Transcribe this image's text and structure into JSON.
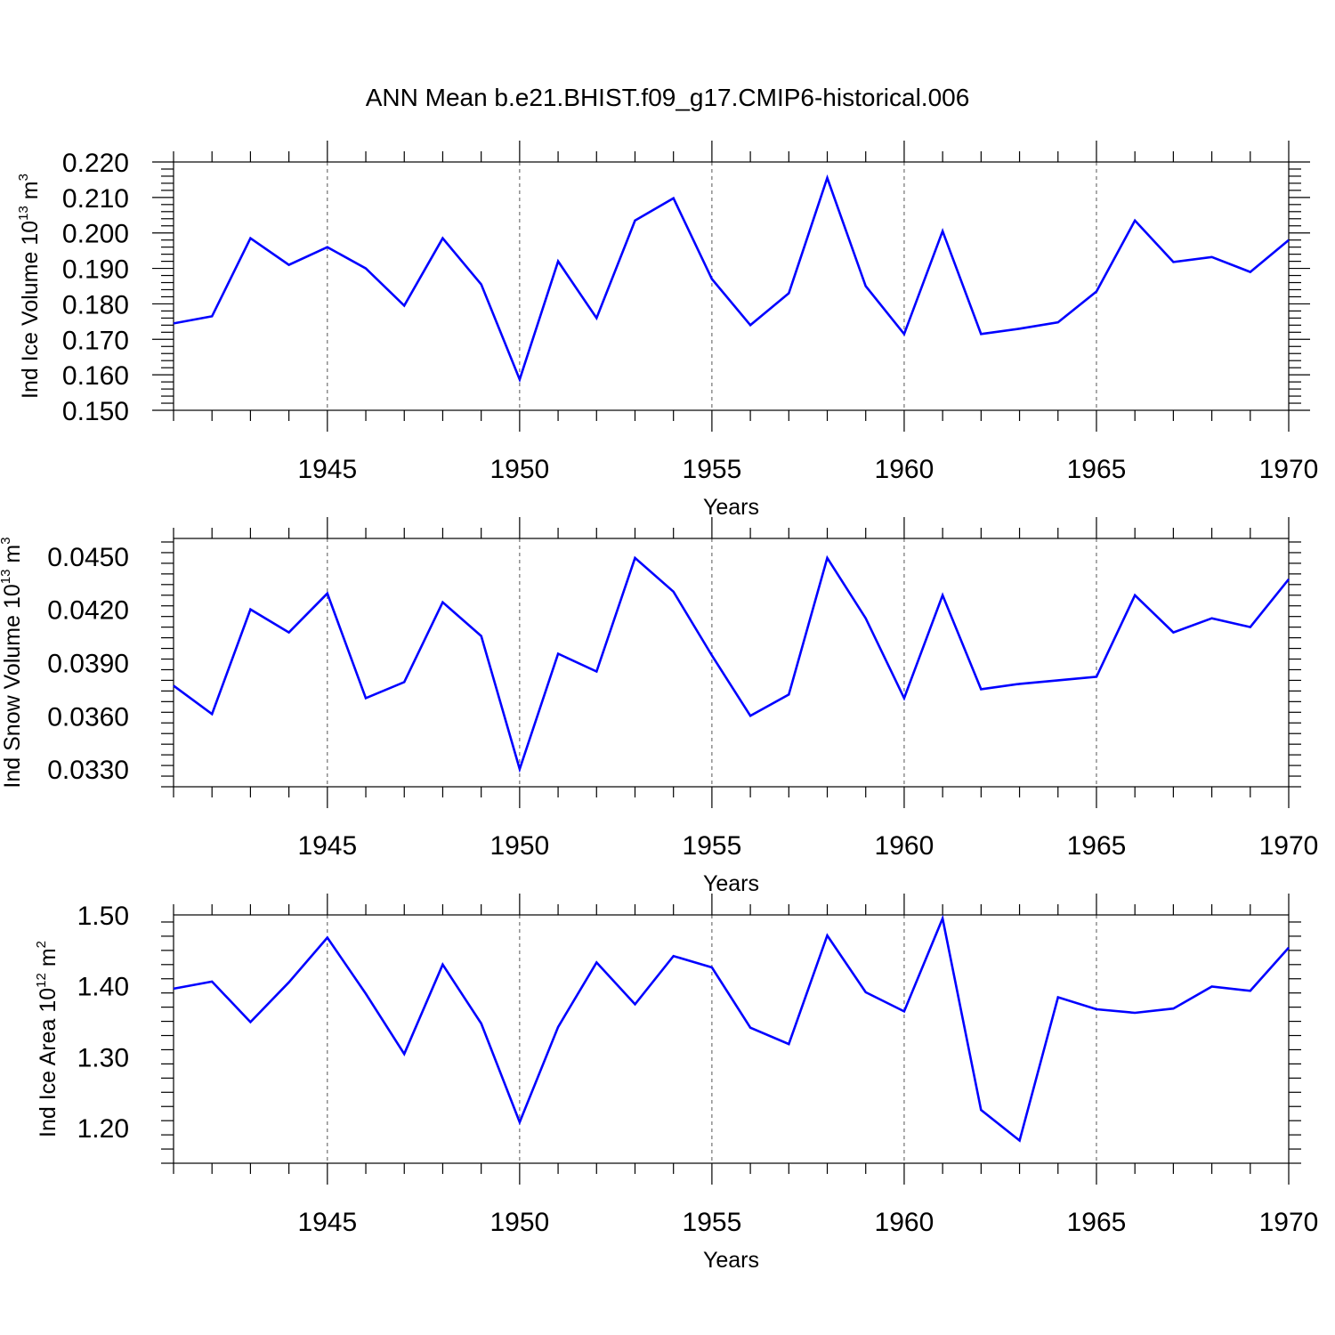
{
  "figure": {
    "title": "ANN Mean b.e21.BHIST.f09_g17.CMIP6-historical.006"
  },
  "colors": {
    "series": "#0000ff",
    "axes": "#000000",
    "grid": "#555555"
  },
  "chart_data": [
    {
      "type": "line",
      "ylabel": "Ind Ice Volume 10^13 m^3",
      "ylabel_main": "Ind Ice Volume 10",
      "ylabel_exp": "13",
      "ylabel_unit": "m",
      "ylabel_unit_exp": "3",
      "xlabel": "Years",
      "xlim": [
        1941,
        1970
      ],
      "ylim": [
        0.15,
        0.22
      ],
      "yticks": [
        0.15,
        0.16,
        0.17,
        0.18,
        0.19,
        0.2,
        0.21,
        0.22
      ],
      "ytick_labels": [
        "0.150",
        "0.160",
        "0.170",
        "0.180",
        "0.190",
        "0.200",
        "0.210",
        "0.220"
      ],
      "xticks": [
        1945,
        1950,
        1955,
        1960,
        1965,
        1970
      ],
      "xtick_labels": [
        "1945",
        "1950",
        "1955",
        "1960",
        "1965",
        "1970"
      ],
      "grid": "vertical dashed at major x ticks",
      "series": [
        {
          "x": [
            1941,
            1942,
            1943,
            1944,
            1945,
            1946,
            1947,
            1948,
            1949,
            1950,
            1951,
            1952,
            1953,
            1954,
            1955,
            1956,
            1957,
            1958,
            1959,
            1960,
            1961,
            1962,
            1963,
            1964,
            1965,
            1966,
            1967,
            1968,
            1969,
            1970
          ],
          "values": [
            0.1745,
            0.1765,
            0.1985,
            0.191,
            0.196,
            0.19,
            0.1795,
            0.1985,
            0.1855,
            0.1587,
            0.192,
            0.176,
            0.2035,
            0.2098,
            0.187,
            0.174,
            0.183,
            0.2155,
            0.185,
            0.1715,
            0.2005,
            0.1715,
            0.173,
            0.1748,
            0.1835,
            0.2035,
            0.1918,
            0.1932,
            0.189,
            0.198
          ]
        }
      ]
    },
    {
      "type": "line",
      "ylabel": "Ind Snow Volume 10^13 m^3",
      "ylabel_main": "Ind Snow Volume 10",
      "ylabel_exp": "13",
      "ylabel_unit": "m",
      "ylabel_unit_exp": "3",
      "xlabel": "Years",
      "xlim": [
        1941,
        1970
      ],
      "ylim": [
        0.032,
        0.046
      ],
      "yticks": [
        0.033,
        0.036,
        0.039,
        0.042,
        0.045
      ],
      "ytick_labels": [
        "0.0330",
        "0.0360",
        "0.0390",
        "0.0420",
        "0.0450"
      ],
      "xticks": [
        1945,
        1950,
        1955,
        1960,
        1965,
        1970
      ],
      "xtick_labels": [
        "1945",
        "1950",
        "1955",
        "1960",
        "1965",
        "1970"
      ],
      "grid": "vertical dashed at major x ticks",
      "series": [
        {
          "x": [
            1941,
            1942,
            1943,
            1944,
            1945,
            1946,
            1947,
            1948,
            1949,
            1950,
            1951,
            1952,
            1953,
            1954,
            1955,
            1956,
            1957,
            1958,
            1959,
            1960,
            1961,
            1962,
            1963,
            1964,
            1965,
            1966,
            1967,
            1968,
            1969,
            1970
          ],
          "values": [
            0.0377,
            0.0361,
            0.042,
            0.0407,
            0.0429,
            0.037,
            0.0379,
            0.0424,
            0.0405,
            0.033,
            0.0395,
            0.0385,
            0.0449,
            0.043,
            0.0394,
            0.036,
            0.0372,
            0.0449,
            0.0415,
            0.037,
            0.0428,
            0.0375,
            0.0378,
            0.038,
            0.0382,
            0.0428,
            0.0407,
            0.0415,
            0.041,
            0.0437
          ]
        }
      ]
    },
    {
      "type": "line",
      "ylabel": "Ind Ice Area 10^12 m^2",
      "ylabel_main": "Ind Ice Area 10",
      "ylabel_exp": "12",
      "ylabel_unit": "m",
      "ylabel_unit_exp": "2",
      "xlabel": "Years",
      "xlim": [
        1941,
        1970
      ],
      "ylim": [
        1.15,
        1.5
      ],
      "yticks": [
        1.2,
        1.3,
        1.4,
        1.5
      ],
      "ytick_labels": [
        "1.20",
        "1.30",
        "1.40",
        "1.50"
      ],
      "xticks": [
        1945,
        1950,
        1955,
        1960,
        1965,
        1970
      ],
      "xtick_labels": [
        "1945",
        "1950",
        "1955",
        "1960",
        "1965",
        "1970"
      ],
      "grid": "vertical dashed at major x ticks",
      "series": [
        {
          "x": [
            1941,
            1942,
            1943,
            1944,
            1945,
            1946,
            1947,
            1948,
            1949,
            1950,
            1951,
            1952,
            1953,
            1954,
            1955,
            1956,
            1957,
            1958,
            1959,
            1960,
            1961,
            1962,
            1963,
            1964,
            1965,
            1966,
            1967,
            1968,
            1969,
            1970
          ],
          "values": [
            1.396,
            1.406,
            1.349,
            1.405,
            1.468,
            1.389,
            1.304,
            1.43,
            1.347,
            1.208,
            1.342,
            1.433,
            1.374,
            1.442,
            1.426,
            1.341,
            1.318,
            1.471,
            1.391,
            1.364,
            1.495,
            1.225,
            1.182,
            1.384,
            1.367,
            1.362,
            1.368,
            1.399,
            1.393,
            1.454
          ]
        }
      ]
    }
  ]
}
